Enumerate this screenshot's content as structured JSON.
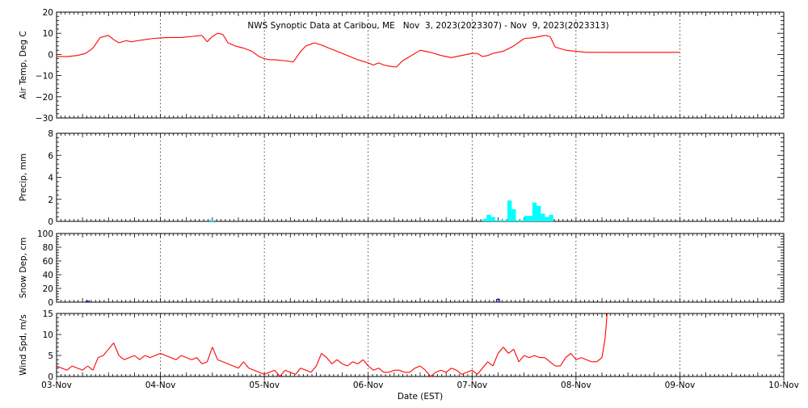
{
  "title": "NWS Synoptic Data at Caribou, ME   Nov  3, 2023(2023307) - Nov  9, 2023(2023313)",
  "chart_data": {
    "type": "multi-panel time series",
    "x_axis": {
      "label": "Date (EST)",
      "ticks": [
        "03-Nov",
        "04-Nov",
        "05-Nov",
        "06-Nov",
        "07-Nov",
        "08-Nov",
        "09-Nov",
        "10-Nov"
      ],
      "range_days": [
        0,
        7
      ],
      "grid": "dotted vertical at each day"
    },
    "panels": [
      {
        "name": "air-temp",
        "type": "line",
        "ylabel": "Air Temp, Deg C",
        "ylim": [
          -30,
          20
        ],
        "ytick_labels": [
          "20",
          "10",
          "0",
          "−10",
          "−20",
          "−30"
        ],
        "ytick_values": [
          20,
          10,
          0,
          -10,
          -20,
          -30
        ],
        "color": "#ff0000",
        "x_days": [
          0,
          0.1,
          0.2,
          0.28,
          0.35,
          0.42,
          0.5,
          0.55,
          0.6,
          0.67,
          0.72,
          0.78,
          0.85,
          0.92,
          1.0,
          1.1,
          1.2,
          1.3,
          1.4,
          1.45,
          1.5,
          1.55,
          1.6,
          1.65,
          1.72,
          1.8,
          1.88,
          1.95,
          2.0,
          2.05,
          2.1,
          2.2,
          2.28,
          2.35,
          2.4,
          2.48,
          2.55,
          2.62,
          2.7,
          2.8,
          2.9,
          3.0,
          3.05,
          3.1,
          3.15,
          3.2,
          3.27,
          3.33,
          3.4,
          3.5,
          3.6,
          3.7,
          3.8,
          3.9,
          4.0,
          4.05,
          4.1,
          4.15,
          4.2,
          4.3,
          4.4,
          4.5,
          4.6,
          4.7,
          4.75,
          4.8,
          4.9,
          5.0,
          5.1,
          5.2,
          5.3,
          5.5,
          5.7,
          5.9,
          6.0
        ],
        "values": [
          -1,
          -1,
          -0.5,
          0.5,
          3,
          8,
          9,
          7,
          5.5,
          6.5,
          6,
          6.5,
          7,
          7.5,
          7.8,
          8,
          8,
          8.5,
          9,
          6,
          8.5,
          10,
          9.5,
          5.5,
          4,
          3,
          1.5,
          -1,
          -2,
          -2.5,
          -2.5,
          -3,
          -3.5,
          1.5,
          4,
          5.5,
          4.5,
          3,
          1.5,
          -0.5,
          -2.5,
          -4,
          -5,
          -4,
          -5,
          -5.5,
          -6,
          -3,
          -1,
          2,
          1,
          -0.5,
          -1.5,
          -0.5,
          0.5,
          0.5,
          -1,
          -0.5,
          0.5,
          1.5,
          4,
          7.5,
          8,
          9,
          8.5,
          3.5,
          2,
          1.5,
          1,
          1,
          1,
          1,
          1,
          1,
          1
        ]
      },
      {
        "name": "precip",
        "type": "bar",
        "ylabel": "Precip, mm",
        "ylim": [
          0,
          8
        ],
        "ytick_labels": [
          "8",
          "6",
          "4",
          "2",
          "0"
        ],
        "ytick_values": [
          8,
          6,
          4,
          2,
          0
        ],
        "color": "#00ffff",
        "x_days": [
          1.47,
          4.1,
          4.14,
          4.18,
          4.22,
          4.26,
          4.3,
          4.34,
          4.38,
          4.42,
          4.46,
          4.5,
          4.54,
          4.58,
          4.62,
          4.66,
          4.7,
          4.74
        ],
        "values": [
          0.15,
          0.2,
          0.6,
          0.4,
          0.1,
          0.1,
          0.1,
          1.9,
          1.1,
          0.1,
          0.1,
          0.5,
          0.5,
          1.7,
          1.4,
          0.7,
          0.4,
          0.6
        ]
      },
      {
        "name": "snow-depth",
        "type": "bar",
        "ylabel": "Snow Dep, cm",
        "ylim": [
          0,
          100
        ],
        "ytick_labels": [
          "100",
          "80",
          "60",
          "40",
          "20",
          "0"
        ],
        "ytick_values": [
          100,
          80,
          60,
          40,
          20,
          0
        ],
        "color": "#000080",
        "x_days": [
          0.3,
          4.25
        ],
        "values": [
          1.5,
          4
        ]
      },
      {
        "name": "wind-speed",
        "type": "line",
        "ylabel": "Wind Spd, m/s",
        "ylim": [
          0,
          15
        ],
        "ytick_labels": [
          "15",
          "10",
          "5",
          "0"
        ],
        "ytick_values": [
          15,
          10,
          5,
          0
        ],
        "color": "#ff0000",
        "x_days": [
          0,
          0.05,
          0.1,
          0.15,
          0.2,
          0.25,
          0.3,
          0.35,
          0.4,
          0.45,
          0.5,
          0.55,
          0.6,
          0.65,
          0.7,
          0.75,
          0.8,
          0.85,
          0.9,
          0.95,
          1.0,
          1.05,
          1.1,
          1.15,
          1.2,
          1.25,
          1.3,
          1.35,
          1.4,
          1.45,
          1.5,
          1.55,
          1.6,
          1.65,
          1.7,
          1.75,
          1.8,
          1.85,
          1.9,
          1.95,
          2.0,
          2.05,
          2.1,
          2.15,
          2.2,
          2.25,
          2.3,
          2.35,
          2.4,
          2.45,
          2.5,
          2.55,
          2.6,
          2.65,
          2.7,
          2.75,
          2.8,
          2.85,
          2.9,
          2.95,
          3.0,
          3.05,
          3.1,
          3.15,
          3.2,
          3.25,
          3.3,
          3.35,
          3.4,
          3.45,
          3.5,
          3.55,
          3.6,
          3.65,
          3.7,
          3.75,
          3.8,
          3.85,
          3.9,
          3.95,
          4.0,
          4.05,
          4.1,
          4.15,
          4.2,
          4.25,
          4.3,
          4.35,
          4.4,
          4.45,
          4.5,
          4.55,
          4.6,
          4.65,
          4.7,
          4.75,
          4.8,
          4.85,
          4.9,
          4.95,
          5.0,
          5.05,
          5.1,
          5.15,
          5.2,
          5.25,
          5.28,
          5.3
        ],
        "values": [
          2.5,
          2,
          1.5,
          2.5,
          2,
          1.5,
          2.5,
          1.5,
          4.5,
          5,
          6.5,
          8,
          5,
          4,
          4.5,
          5,
          4,
          5,
          4.5,
          5,
          5.5,
          5,
          4.5,
          4,
          5,
          4.5,
          4,
          4.5,
          3,
          3.5,
          7,
          4,
          3.5,
          3,
          2.5,
          2,
          3.5,
          2,
          1.5,
          1,
          0.5,
          1,
          1.5,
          0,
          1.5,
          1,
          0.5,
          2,
          1.5,
          1,
          2.5,
          5.5,
          4.5,
          3,
          4,
          3,
          2.5,
          3.5,
          3,
          4,
          2.5,
          1.5,
          2,
          1,
          1,
          1.5,
          1.5,
          1,
          1,
          2,
          2.5,
          1.5,
          0,
          1,
          1.5,
          1,
          2,
          1.5,
          0.5,
          1,
          1.5,
          0.5,
          2,
          3.5,
          2.5,
          5.5,
          7,
          5.5,
          6.5,
          3.5,
          5,
          4.5,
          5,
          4.5,
          4.5,
          3.5,
          2.5,
          2.5,
          4.5,
          5.5,
          4,
          4.5,
          4,
          3.5,
          3.5,
          4.5,
          9,
          15
        ]
      }
    ]
  }
}
